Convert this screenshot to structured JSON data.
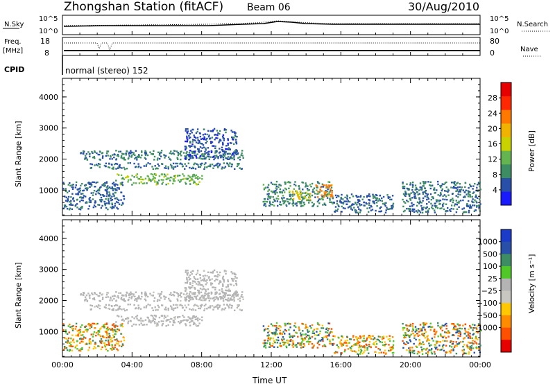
{
  "header": {
    "title": "Zhongshan Station (fitACF)",
    "beam": "Beam 06",
    "date": "30/Aug/2010"
  },
  "aux": {
    "nsky_label": "N.Sky",
    "nsky_hi": "10^5",
    "nsky_lo": "10^0",
    "nsearch_label": "N.Search",
    "nsearch_hi": "10^5",
    "nsearch_lo": "10^0",
    "freq_label": "Freq.",
    "freq_unit": "[MHz]",
    "freq_hi": "18",
    "freq_lo": "8",
    "nave_label": "Nave",
    "nave_hi": "80",
    "nave_lo": "0",
    "cpid_label": "CPID",
    "cpid_text": "normal (stereo) 152"
  },
  "colors": {
    "power_scale": [
      "#1a1aff",
      "#2850a8",
      "#3c8c64",
      "#64b450",
      "#c8d200",
      "#f0b400",
      "#ff7800",
      "#ff2800",
      "#e60000"
    ],
    "velocity_scale": [
      "#e60000",
      "#ff5000",
      "#ff8c00",
      "#ffc800",
      "#c8c8c0",
      "#b4b4b4",
      "#50c828",
      "#3c8c64",
      "#2850a8",
      "#1a3cc8"
    ]
  },
  "chart_data": [
    {
      "type": "heatmap",
      "name": "power",
      "ylabel": "Slant Range [km]",
      "xlim": [
        0,
        24
      ],
      "ylim": [
        180,
        4600
      ],
      "yticks": [
        "1000",
        "2000",
        "3000",
        "4000"
      ],
      "colorbar": {
        "label": "Power [dB]",
        "ticks": [
          "4",
          "8",
          "12",
          "16",
          "20",
          "24",
          "28"
        ],
        "range": [
          0,
          32
        ]
      },
      "echo_regions": [
        {
          "t0": 1.0,
          "t1": 10.5,
          "r0": 2000,
          "r1": 2300,
          "level": 9
        },
        {
          "t0": 1.5,
          "t1": 10.4,
          "r0": 1700,
          "r1": 1900,
          "level": 8
        },
        {
          "t0": 7.0,
          "t1": 10.0,
          "r0": 2000,
          "r1": 3000,
          "level": 6
        },
        {
          "t0": 3.0,
          "t1": 8.0,
          "r0": 1200,
          "r1": 1550,
          "level": 14
        },
        {
          "t0": 0.0,
          "t1": 3.5,
          "r0": 400,
          "r1": 1300,
          "level": 7
        },
        {
          "t0": 11.5,
          "t1": 15.5,
          "r0": 500,
          "r1": 1300,
          "level": 10
        },
        {
          "t0": 14.5,
          "t1": 15.5,
          "r0": 800,
          "r1": 1200,
          "level": 26
        },
        {
          "t0": 13.0,
          "t1": 14.2,
          "r0": 700,
          "r1": 1000,
          "level": 20
        },
        {
          "t0": 15.5,
          "t1": 19.0,
          "r0": 300,
          "r1": 900,
          "level": 7
        },
        {
          "t0": 19.5,
          "t1": 24.0,
          "r0": 300,
          "r1": 1300,
          "level": 8
        }
      ]
    },
    {
      "type": "heatmap",
      "name": "velocity",
      "ylabel": "Slant Range [km]",
      "xlabel": "Time UT",
      "xlim": [
        0,
        24
      ],
      "ylim": [
        180,
        4600
      ],
      "xticks": [
        "00:00",
        "04:00",
        "08:00",
        "12:00",
        "16:00",
        "20:00",
        "00:00"
      ],
      "yticks": [
        "1000",
        "2000",
        "3000",
        "4000"
      ],
      "colorbar": {
        "label": "Velocity [m s⁻¹]",
        "ticks": [
          "1000",
          "500",
          "100",
          "25",
          "−25",
          "−100",
          "−500",
          "−1000"
        ]
      },
      "echo_regions": [
        {
          "t0": 1.0,
          "t1": 10.5,
          "r0": 2000,
          "r1": 2300,
          "vclass": "ground"
        },
        {
          "t0": 1.5,
          "t1": 10.4,
          "r0": 1700,
          "r1": 1900,
          "vclass": "ground"
        },
        {
          "t0": 7.0,
          "t1": 10.0,
          "r0": 2000,
          "r1": 3000,
          "vclass": "ground"
        },
        {
          "t0": 3.0,
          "t1": 8.0,
          "r0": 1200,
          "r1": 1550,
          "vclass": "ground"
        },
        {
          "t0": 0.0,
          "t1": 3.5,
          "r0": 400,
          "r1": 1300,
          "vclass": "negative"
        },
        {
          "t0": 11.5,
          "t1": 15.5,
          "r0": 500,
          "r1": 1300,
          "vclass": "mixed"
        },
        {
          "t0": 15.5,
          "t1": 19.0,
          "r0": 300,
          "r1": 900,
          "vclass": "negative"
        },
        {
          "t0": 19.5,
          "t1": 24.0,
          "r0": 300,
          "r1": 1300,
          "vclass": "mixed"
        }
      ]
    }
  ]
}
